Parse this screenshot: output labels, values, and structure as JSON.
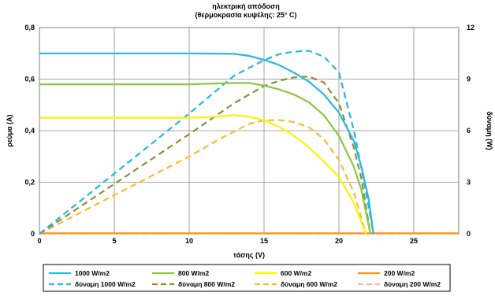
{
  "chart_data": {
    "type": "line",
    "title": "ηλεκτρική απόδοση",
    "subtitle": "(θερμοκρασία κυψέλης: 25° C)",
    "xlabel": "τάσης (V)",
    "ylabel": "ρεύμα (A)",
    "y2label": "δύναμη (W)",
    "xlim": [
      0,
      28
    ],
    "ylim": [
      0,
      0.8
    ],
    "y2lim": [
      0,
      12
    ],
    "x_ticks": [
      "0",
      "5",
      "10",
      "15",
      "20",
      "25"
    ],
    "y_ticks": [
      "0",
      "0,2",
      "0,4",
      "0,6",
      "0,8"
    ],
    "y2_ticks": [
      "0",
      "3",
      "6",
      "9",
      "12"
    ],
    "grid": true,
    "legend_position": "bottom",
    "series": [
      {
        "name": "1000 W/m2",
        "axis": "left",
        "style": "solid",
        "color": "#29b6e6",
        "points": [
          [
            0,
            0.7
          ],
          [
            5,
            0.7
          ],
          [
            10,
            0.7
          ],
          [
            13,
            0.698
          ],
          [
            14,
            0.69
          ],
          [
            15,
            0.675
          ],
          [
            16,
            0.655
          ],
          [
            17,
            0.625
          ],
          [
            18,
            0.59
          ],
          [
            19,
            0.54
          ],
          [
            20,
            0.47
          ],
          [
            21,
            0.36
          ],
          [
            21.5,
            0.26
          ],
          [
            22,
            0.13
          ],
          [
            22.3,
            0
          ]
        ]
      },
      {
        "name": "800 W/m2",
        "axis": "left",
        "style": "solid",
        "color": "#8cc63f",
        "points": [
          [
            0,
            0.58
          ],
          [
            5,
            0.58
          ],
          [
            10,
            0.58
          ],
          [
            13,
            0.585
          ],
          [
            14,
            0.585
          ],
          [
            15,
            0.575
          ],
          [
            16,
            0.56
          ],
          [
            17,
            0.54
          ],
          [
            18,
            0.51
          ],
          [
            19,
            0.46
          ],
          [
            20,
            0.38
          ],
          [
            21,
            0.26
          ],
          [
            21.5,
            0.17
          ],
          [
            22.1,
            0
          ]
        ]
      },
      {
        "name": "600 W/m2",
        "axis": "left",
        "style": "solid",
        "color": "#fff200",
        "points": [
          [
            0,
            0.45
          ],
          [
            5,
            0.45
          ],
          [
            10,
            0.45
          ],
          [
            12,
            0.455
          ],
          [
            13,
            0.46
          ],
          [
            14,
            0.455
          ],
          [
            15,
            0.44
          ],
          [
            16,
            0.415
          ],
          [
            17,
            0.38
          ],
          [
            18,
            0.335
          ],
          [
            19,
            0.28
          ],
          [
            20,
            0.22
          ],
          [
            21,
            0.12
          ],
          [
            21.8,
            0
          ]
        ]
      },
      {
        "name": "200 W/m2",
        "axis": "left",
        "style": "solid",
        "color": "#f7941d",
        "points": [
          [
            0,
            0.002
          ],
          [
            5,
            0.002
          ],
          [
            10,
            0.002
          ],
          [
            15,
            0.002
          ],
          [
            20,
            0.002
          ],
          [
            25,
            0.002
          ],
          [
            28,
            0.002
          ]
        ]
      },
      {
        "name": "δύναμη 1000 W/m2",
        "axis": "right",
        "style": "dashed",
        "color": "#29b6e6",
        "points": [
          [
            0,
            0
          ],
          [
            5,
            3.5
          ],
          [
            10,
            7.0
          ],
          [
            13,
            9.2
          ],
          [
            15,
            10.1
          ],
          [
            16,
            10.45
          ],
          [
            17,
            10.6
          ],
          [
            18,
            10.65
          ],
          [
            19,
            10.3
          ],
          [
            20,
            9.4
          ],
          [
            21,
            6.0
          ],
          [
            21.5,
            3.8
          ],
          [
            22,
            1.5
          ],
          [
            22.3,
            0
          ]
        ]
      },
      {
        "name": "δύναμη 800 W/m2",
        "axis": "right",
        "style": "dashed",
        "color": "#8a8f3a",
        "points": [
          [
            0,
            0
          ],
          [
            5,
            2.9
          ],
          [
            10,
            5.8
          ],
          [
            13,
            7.6
          ],
          [
            15,
            8.6
          ],
          [
            16,
            8.9
          ],
          [
            17,
            9.1
          ],
          [
            18,
            9.15
          ],
          [
            19,
            8.8
          ],
          [
            20,
            7.6
          ],
          [
            21,
            5.0
          ],
          [
            21.5,
            3.2
          ],
          [
            22.1,
            0
          ]
        ]
      },
      {
        "name": "δύναμη 600 W/m2",
        "axis": "right",
        "style": "dashed",
        "color": "#fdbb2f",
        "points": [
          [
            0,
            0
          ],
          [
            5,
            2.25
          ],
          [
            10,
            4.5
          ],
          [
            12,
            5.5
          ],
          [
            14,
            6.4
          ],
          [
            15,
            6.6
          ],
          [
            16,
            6.62
          ],
          [
            17,
            6.5
          ],
          [
            18,
            6.2
          ],
          [
            19,
            5.5
          ],
          [
            20,
            4.3
          ],
          [
            21,
            2.4
          ],
          [
            21.8,
            0
          ]
        ]
      },
      {
        "name": "δύναμη 200 W/m2",
        "axis": "right",
        "style": "dashed",
        "color": "#f4b6a6",
        "points": [
          [
            0,
            0.01
          ],
          [
            5,
            0.01
          ],
          [
            10,
            0.01
          ],
          [
            15,
            0.01
          ],
          [
            20,
            0.01
          ],
          [
            25,
            0.01
          ],
          [
            28,
            0.01
          ]
        ]
      }
    ]
  }
}
